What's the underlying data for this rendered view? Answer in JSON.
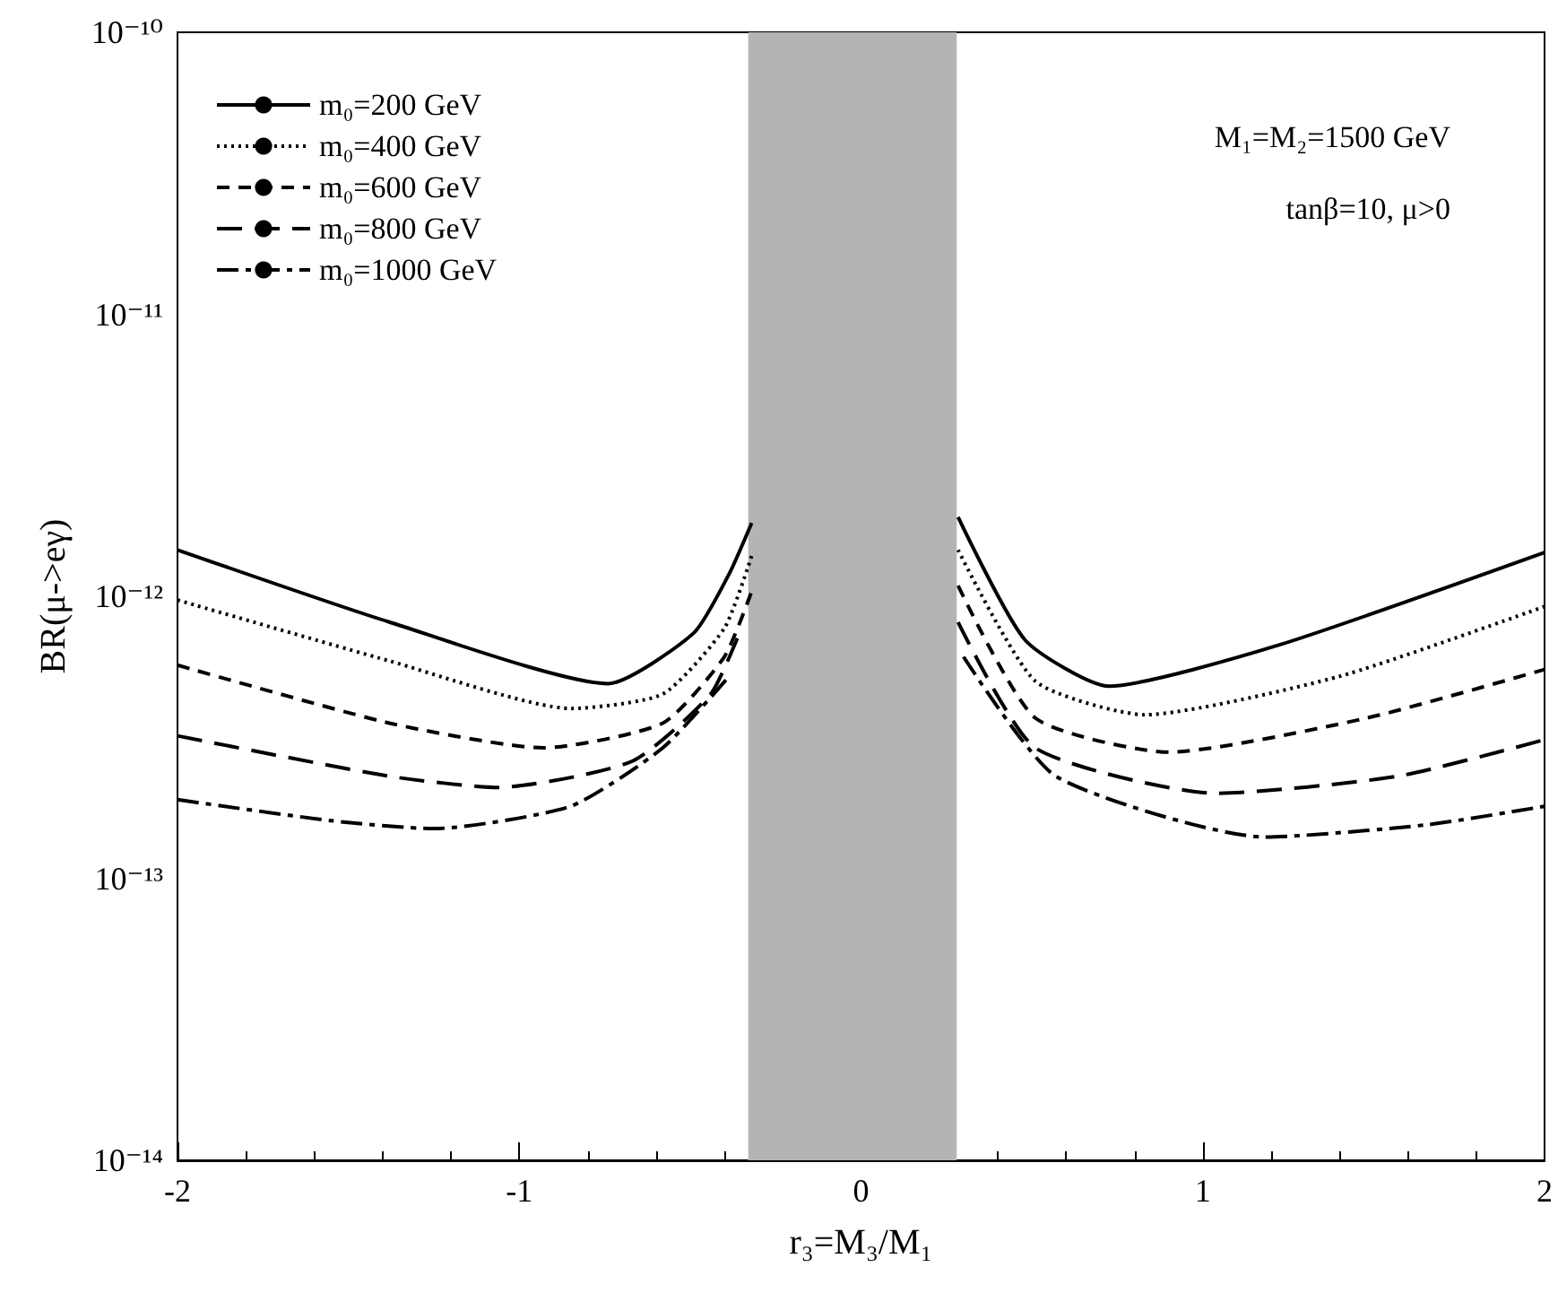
{
  "chart_data": {
    "type": "line",
    "xlabel": "r₃=M₃/M₁",
    "ylabel": "BR(μ->eγ)",
    "log": "y",
    "grid": false,
    "legend": "top left",
    "marker": "none",
    "xlim": [
      -2,
      2
    ],
    "xticks": [
      -2,
      -1,
      0,
      1,
      2
    ],
    "ylim": [
      1e-14,
      1e-10
    ],
    "yticks": [
      {
        "value": 1e-14,
        "label": "10⁻¹⁴"
      },
      {
        "value": 1e-13,
        "label": "10⁻¹³"
      },
      {
        "value": 1e-12,
        "label": "10⁻¹²"
      },
      {
        "value": 1e-11,
        "label": "10⁻¹¹"
      },
      {
        "value": 1e-10,
        "label": "10⁻¹⁰"
      }
    ],
    "bands": [
      {
        "axis": "x",
        "from": -0.33,
        "to": 0.28,
        "color": "#b4b4b4"
      }
    ],
    "annotations": [
      "M₁=M₂=1500 GeV",
      "tanβ=10, μ>0"
    ],
    "series": [
      {
        "name": "m₀=200 GeV",
        "color": "#000000",
        "line_style": "solid",
        "x": [
          -2,
          -1.38,
          -0.74,
          -0.49,
          -0.386,
          -0.32,
          0,
          0.284,
          0.48,
          0.725,
          1.22,
          2
        ],
        "values": [
          1.46e-12,
          8.1e-13,
          4.9e-13,
          7.4e-13,
          1.2e-12,
          1.82e-12,
          null,
          1.91e-12,
          7e-13,
          4.8e-13,
          6.7e-13,
          1.43e-12
        ]
      },
      {
        "name": "m₀=400 GeV",
        "color": "#000000",
        "line_style": "dotted",
        "x": [
          -2,
          -1.38,
          -0.85,
          -0.58,
          -0.4,
          -0.32,
          0,
          0.284,
          0.51,
          0.83,
          1.4,
          2
        ],
        "values": [
          9.7e-13,
          5.9e-13,
          4e-13,
          4.5e-13,
          7.7e-13,
          1.39e-12,
          null,
          1.46e-12,
          5e-13,
          3.8e-13,
          5.2e-13,
          9.2e-13
        ]
      },
      {
        "name": "m₀=600 GeV",
        "color": "#000000",
        "line_style": "dashed",
        "x": [
          -2,
          -1.38,
          -0.93,
          -0.58,
          -0.4,
          -0.32,
          0,
          0.284,
          0.51,
          0.9,
          1.48,
          2
        ],
        "values": [
          5.7e-13,
          3.55e-13,
          2.9e-13,
          3.55e-13,
          6.1e-13,
          1.04e-12,
          null,
          1.09e-12,
          3.7e-13,
          2.8e-13,
          3.7e-13,
          5.5e-13
        ]
      },
      {
        "name": "m₀=800 GeV",
        "color": "#000000",
        "line_style": "longdash",
        "x": [
          -2,
          -1.38,
          -1.06,
          -0.67,
          -0.44,
          -0.35,
          0,
          0.284,
          0.51,
          1.04,
          1.57,
          2
        ],
        "values": [
          3.2e-13,
          2.3e-13,
          2.1e-13,
          2.6e-13,
          4.5e-13,
          7.7e-13,
          null,
          8.1e-13,
          2.9e-13,
          2e-13,
          2.3e-13,
          3.1e-13
        ]
      },
      {
        "name": "m₀=1000 GeV",
        "color": "#000000",
        "line_style": "dashdot",
        "x": [
          -2,
          -1.55,
          -1.25,
          -0.85,
          -0.58,
          -0.386,
          0,
          0.3,
          0.57,
          1.18,
          1.66,
          2
        ],
        "values": [
          1.9e-13,
          1.6e-13,
          1.5e-13,
          1.8e-13,
          2.9e-13,
          5.2e-13,
          null,
          6.1e-13,
          2.3e-13,
          1.4e-13,
          1.55e-13,
          1.8e-13
        ]
      }
    ]
  }
}
